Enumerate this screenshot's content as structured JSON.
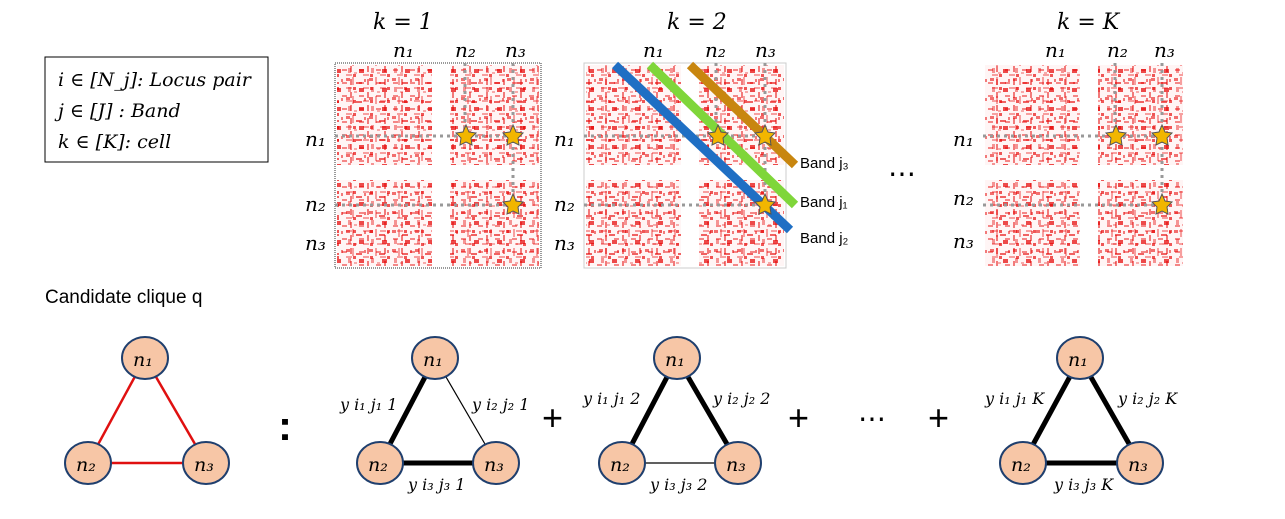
{
  "legend": {
    "line_i": "i ∈ [N_j]: Locus pair",
    "line_j": "j ∈ [J]  : Band",
    "line_k": "k ∈ [K]: cell"
  },
  "panels": [
    {
      "k_label": "k = 1",
      "col_labels": [
        "n₁",
        "n₂",
        "n₃"
      ],
      "row_labels": [
        "n₁",
        "n₂",
        "n₃"
      ]
    },
    {
      "k_label": "k = 2",
      "col_labels": [
        "n₁",
        "n₂",
        "n₃"
      ],
      "row_labels": [
        "n₁",
        "n₂",
        "n₃"
      ]
    },
    {
      "k_label": "k = K",
      "col_labels": [
        "n₁",
        "n₂",
        "n₃"
      ],
      "row_labels": [
        "n₁",
        "n₂",
        "n₃"
      ]
    }
  ],
  "bands": {
    "j3": {
      "label": "Band j₃",
      "color": "#c8860f"
    },
    "j1": {
      "label": "Band j₁",
      "color": "#7fd63a"
    },
    "j2": {
      "label": "Band j₂",
      "color": "#1f6fc4"
    }
  },
  "dots": "⋯",
  "candidate_label": "Candidate clique q",
  "colon": ":",
  "plus": "+",
  "node_labels": [
    "n₁",
    "n₂",
    "n₃"
  ],
  "edge_labels": {
    "cell1": {
      "a": "y i₁ j₁ 1",
      "b": "y i₂ j₂ 1",
      "c": "y i₃ j₃ 1"
    },
    "cell2": {
      "a": "y i₁ j₁ 2",
      "b": "y i₂ j₂ 2",
      "c": "y i₃ j₃ 2"
    },
    "cellK": {
      "a": "y i₁ j₁ K",
      "b": "y i₂ j₂ K",
      "c": "y i₃ j₃ K"
    }
  },
  "colors": {
    "node_fill": "#f7c6a6",
    "node_stroke": "#1f3f6e",
    "heat": "#e60000",
    "candidate_edge": "#e01010",
    "star": "#f2b600"
  }
}
